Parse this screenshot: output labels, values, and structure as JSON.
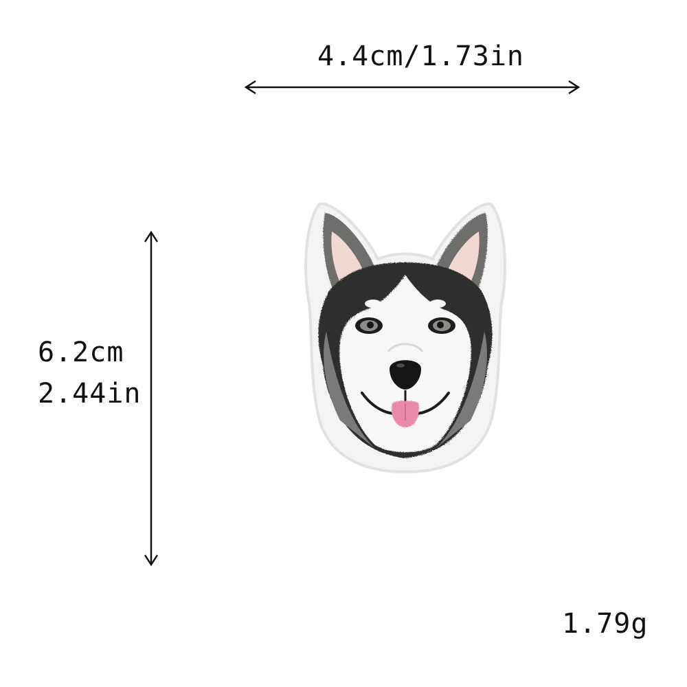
{
  "dimensions": {
    "width_label": "4.4cm/1.73in",
    "height_cm_label": "6.2cm",
    "height_in_label": "2.44in",
    "weight_label": "1.79g"
  },
  "product": {
    "icon": "husky-dog-embroidered-patch",
    "colors": {
      "fur_dark": "#2f2f2f",
      "fur_gray": "#7a7a78",
      "fur_white": "#f4f4f2",
      "ear_inner": "#f1d8d0",
      "tongue": "#e98ba8",
      "nose": "#151515",
      "border": "#e7e7e5"
    }
  },
  "arrow_color": "#111111"
}
